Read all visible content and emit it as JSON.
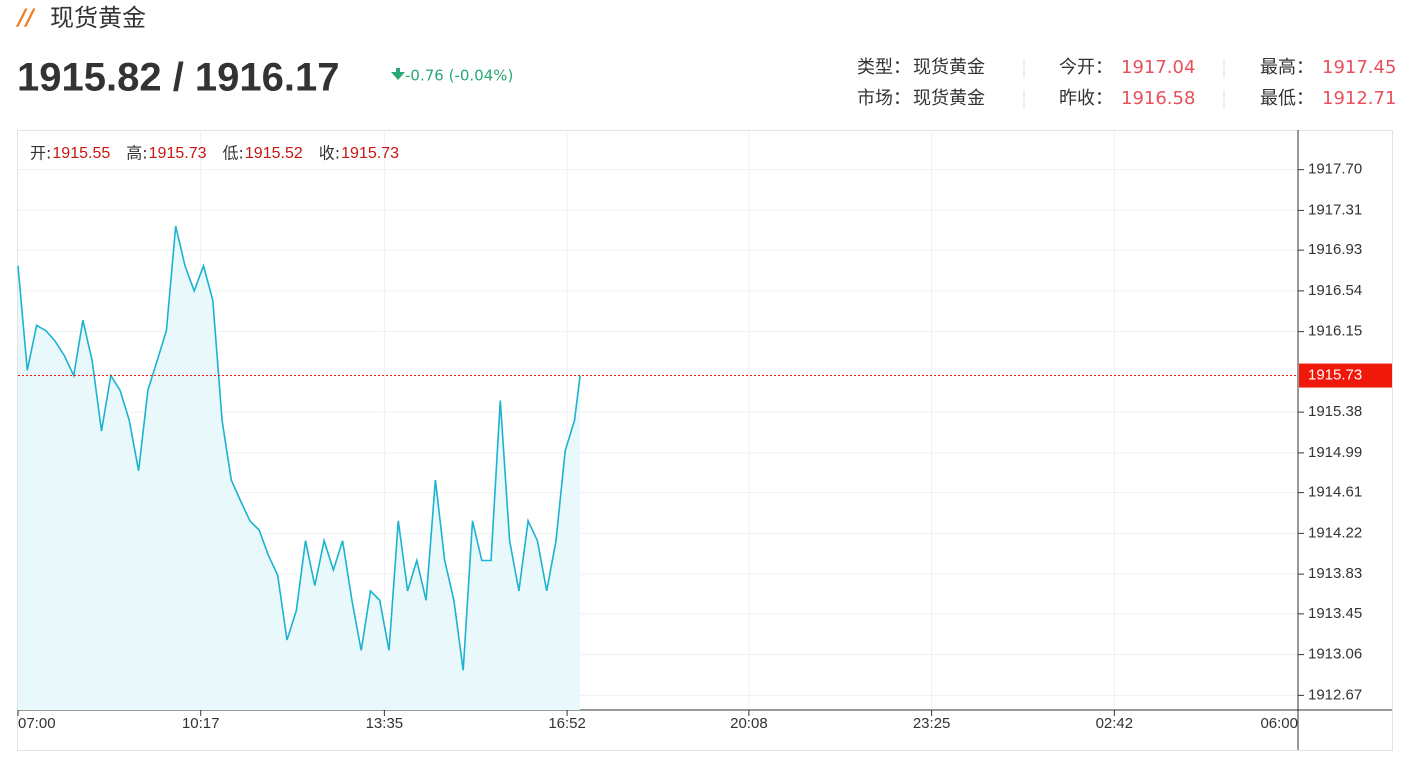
{
  "header": {
    "title": "现货黄金",
    "price": "1915.82 / 1916.17",
    "change": "-0.76 (-0.04%)",
    "info": [
      [
        {
          "label": "类型：",
          "value": "现货黄金"
        },
        {
          "label": "今开：",
          "value": 1917.04
        },
        {
          "label": "最高：",
          "value": 1917.45
        }
      ],
      [
        {
          "label": "市场：",
          "value": "现货黄金"
        },
        {
          "label": "昨收：",
          "value": 1916.58
        },
        {
          "label": "最低：",
          "value": 1912.71
        }
      ]
    ]
  },
  "chart_data": {
    "type": "line",
    "ohlc": [
      {
        "label": "开:",
        "value": 1915.55
      },
      {
        "label": "高:",
        "value": 1915.73
      },
      {
        "label": "低:",
        "value": 1915.52
      },
      {
        "label": "收:",
        "value": 1915.73
      }
    ],
    "x": [
      "07:00",
      "07:10",
      "07:20",
      "07:30",
      "07:40",
      "07:50",
      "08:00",
      "08:10",
      "08:20",
      "08:30",
      "08:40",
      "08:50",
      "09:00",
      "09:10",
      "09:20",
      "09:30",
      "09:40",
      "09:50",
      "10:00",
      "10:10",
      "10:20",
      "10:30",
      "10:40",
      "10:50",
      "11:00",
      "11:10",
      "11:20",
      "11:30",
      "11:40",
      "11:50",
      "12:00",
      "12:10",
      "12:20",
      "12:30",
      "12:40",
      "12:50",
      "13:00",
      "13:10",
      "13:20",
      "13:30",
      "13:40",
      "13:50",
      "14:00",
      "14:10",
      "14:20",
      "14:30",
      "14:40",
      "14:50",
      "15:00",
      "15:10",
      "15:20",
      "15:30",
      "15:40",
      "15:50",
      "16:00",
      "16:10",
      "16:20",
      "16:30",
      "16:40",
      "16:50",
      "17:00",
      "17:06"
    ],
    "series": [
      {
        "color": "#1ab3d0",
        "fill": "#e9f8fb",
        "values": [
          1916.78,
          1915.78,
          1916.21,
          1916.16,
          1916.06,
          1915.92,
          1915.73,
          1916.26,
          1915.87,
          1915.2,
          1915.73,
          1915.59,
          1915.3,
          1914.82,
          1915.59,
          1915.87,
          1916.16,
          1917.16,
          1916.78,
          1916.54,
          1916.78,
          1916.45,
          1915.3,
          1914.73,
          1914.53,
          1914.34,
          1914.25,
          1914.01,
          1913.82,
          1913.2,
          1913.48,
          1914.15,
          1913.72,
          1914.15,
          1913.87,
          1914.15,
          1913.58,
          1913.1,
          1913.67,
          1913.58,
          1913.1,
          1914.34,
          1913.67,
          1913.96,
          1913.58,
          1914.73,
          1913.96,
          1913.58,
          1912.91,
          1914.34,
          1913.96,
          1913.96,
          1915.49,
          1914.15,
          1913.67,
          1914.34,
          1914.15,
          1913.67,
          1914.15,
          1915.01,
          1915.3,
          1915.73
        ]
      }
    ],
    "xlim": [
      "07:00",
      "06:00"
    ],
    "xticks": [
      "07:00",
      "10:17",
      "13:35",
      "16:52",
      "20:08",
      "23:25",
      "02:42",
      "06:00"
    ],
    "ylim": [
      1912.53,
      1918.07
    ],
    "yticks": [
      {
        "value": 1917.7,
        "label": "1917.70"
      },
      1917.31,
      1916.93,
      1916.54,
      1916.15,
      1915.38,
      1914.99,
      1914.61,
      1914.22,
      1913.83,
      1913.45,
      1913.06,
      1912.67
    ],
    "current_price": 1915.73,
    "current_color": "#f0180a",
    "grid": true
  }
}
